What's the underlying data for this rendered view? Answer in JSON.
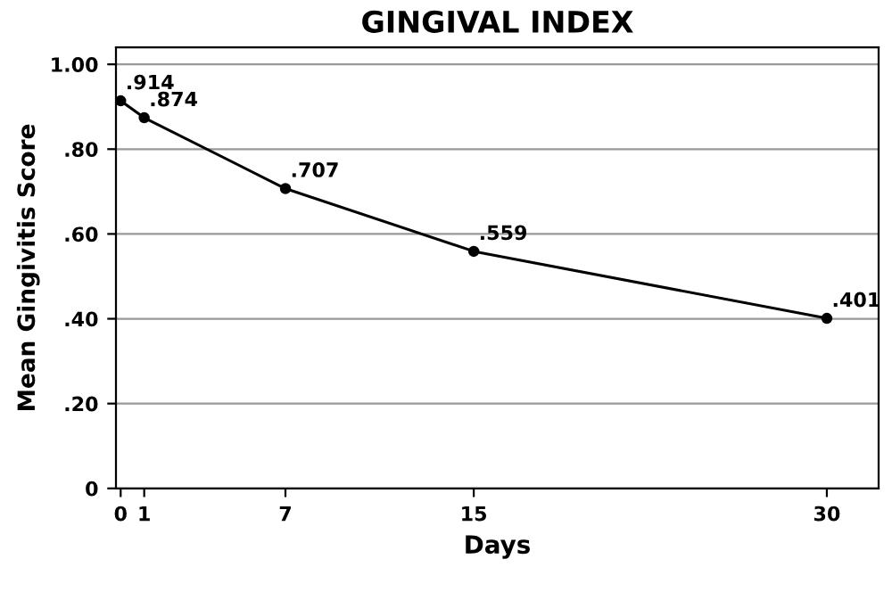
{
  "chart_data": {
    "type": "line",
    "title": "GINGIVAL INDEX",
    "xlabel": "Days",
    "ylabel": "Mean Gingivitis Score",
    "x": [
      0,
      1,
      7,
      15,
      30
    ],
    "series": [
      {
        "color": "#000000",
        "values": [
          0.914,
          0.874,
          0.707,
          0.559,
          0.401
        ],
        "value_labels": [
          ".914",
          ".874",
          ".707",
          ".559",
          ".401"
        ]
      }
    ],
    "xlim": [
      -0.2,
      32.2
    ],
    "ylim": [
      0,
      1.04
    ],
    "xticks": [
      0,
      1,
      7,
      15,
      30
    ],
    "yticks": [
      0,
      {
        "value": 0.2,
        "label": ".20"
      },
      {
        "value": 0.4,
        "label": ".40"
      },
      {
        "value": 0.6,
        "label": ".60"
      },
      {
        "value": 0.8,
        "label": ".80"
      },
      {
        "value": 1.0,
        "label": "1.00"
      }
    ],
    "grid": "y",
    "marker": "circle",
    "line_style": "solid",
    "legend": false
  }
}
